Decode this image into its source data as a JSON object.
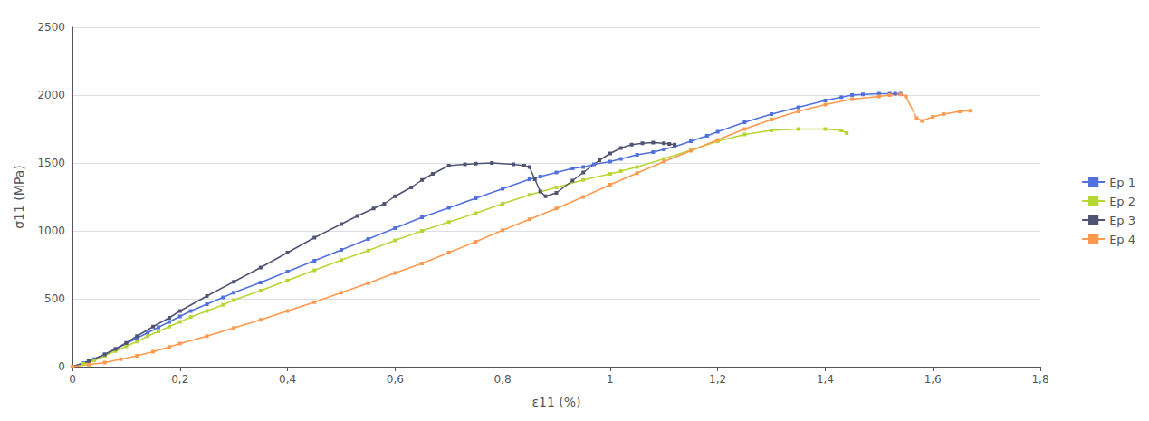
{
  "chart_data": {
    "type": "line",
    "xlabel": "ε11 (%)",
    "ylabel": "σ11 (MPa)",
    "xlim": [
      0,
      1.8
    ],
    "ylim": [
      0,
      2500
    ],
    "xticks": [
      0,
      {
        "value": 0.2,
        "label": "0,2"
      },
      {
        "value": 0.4,
        "label": "0,4"
      },
      {
        "value": 0.6,
        "label": "0,6"
      },
      {
        "value": 0.8,
        "label": "0,8"
      },
      1,
      {
        "value": 1.2,
        "label": "1,2"
      },
      {
        "value": 1.4,
        "label": "1,4"
      },
      {
        "value": 1.6,
        "label": "1,6"
      },
      {
        "value": 1.8,
        "label": "1,8"
      }
    ],
    "yticks": [
      0,
      500,
      1000,
      1500,
      2000,
      2500
    ],
    "grid": "y",
    "legend": "right",
    "marker": "square",
    "series": [
      {
        "name": "Ep 1",
        "x": [
          0,
          0.02,
          0.04,
          0.06,
          0.08,
          0.1,
          0.12,
          0.14,
          0.16,
          0.18,
          0.2,
          0.22,
          0.25,
          0.28,
          0.3,
          0.35,
          0.4,
          0.45,
          0.5,
          0.55,
          0.6,
          0.65,
          0.7,
          0.75,
          0.8,
          0.85,
          0.87,
          0.9,
          0.93,
          0.95,
          0.97,
          1.0,
          1.02,
          1.05,
          1.08,
          1.1,
          1.12,
          1.15,
          1.18,
          1.2,
          1.25,
          1.3,
          1.35,
          1.4,
          1.43,
          1.45,
          1.47,
          1.5,
          1.52,
          1.53,
          1.54
        ],
        "values": [
          0,
          25,
          55,
          90,
          130,
          170,
          210,
          250,
          290,
          330,
          370,
          410,
          460,
          510,
          545,
          620,
          700,
          780,
          860,
          940,
          1020,
          1100,
          1170,
          1240,
          1310,
          1380,
          1400,
          1430,
          1460,
          1470,
          1490,
          1510,
          1530,
          1560,
          1580,
          1600,
          1620,
          1660,
          1700,
          1730,
          1800,
          1860,
          1910,
          1960,
          1985,
          2000,
          2005,
          2010,
          2010,
          2010,
          2010
        ]
      },
      {
        "name": "Ep 2",
        "x": [
          0,
          0.02,
          0.04,
          0.06,
          0.08,
          0.1,
          0.12,
          0.14,
          0.16,
          0.18,
          0.2,
          0.22,
          0.25,
          0.28,
          0.3,
          0.35,
          0.4,
          0.45,
          0.5,
          0.55,
          0.6,
          0.65,
          0.7,
          0.75,
          0.8,
          0.85,
          0.9,
          0.95,
          1.0,
          1.02,
          1.05,
          1.1,
          1.15,
          1.2,
          1.25,
          1.3,
          1.35,
          1.4,
          1.43,
          1.44
        ],
        "values": [
          0,
          20,
          45,
          80,
          115,
          150,
          185,
          225,
          260,
          295,
          330,
          365,
          410,
          455,
          490,
          560,
          635,
          710,
          785,
          855,
          930,
          1000,
          1065,
          1130,
          1200,
          1265,
          1320,
          1375,
          1420,
          1440,
          1470,
          1530,
          1595,
          1660,
          1710,
          1740,
          1750,
          1750,
          1740,
          1720
        ]
      },
      {
        "name": "Ep 3",
        "x": [
          0,
          0.03,
          0.06,
          0.08,
          0.1,
          0.12,
          0.15,
          0.18,
          0.2,
          0.25,
          0.3,
          0.35,
          0.4,
          0.45,
          0.5,
          0.53,
          0.56,
          0.58,
          0.6,
          0.63,
          0.65,
          0.67,
          0.7,
          0.73,
          0.75,
          0.78,
          0.82,
          0.84,
          0.85,
          0.86,
          0.87,
          0.88,
          0.9,
          0.93,
          0.95,
          0.98,
          1.0,
          1.02,
          1.04,
          1.06,
          1.08,
          1.1,
          1.11,
          1.12
        ],
        "values": [
          0,
          40,
          90,
          130,
          175,
          225,
          295,
          360,
          410,
          520,
          625,
          730,
          840,
          950,
          1050,
          1110,
          1165,
          1200,
          1255,
          1320,
          1375,
          1420,
          1480,
          1490,
          1495,
          1500,
          1490,
          1480,
          1470,
          1380,
          1290,
          1255,
          1280,
          1370,
          1430,
          1520,
          1570,
          1610,
          1635,
          1645,
          1650,
          1645,
          1640,
          1635
        ]
      },
      {
        "name": "Ep 4",
        "x": [
          0,
          0.03,
          0.06,
          0.09,
          0.12,
          0.15,
          0.18,
          0.2,
          0.25,
          0.3,
          0.35,
          0.4,
          0.45,
          0.5,
          0.55,
          0.6,
          0.65,
          0.7,
          0.75,
          0.8,
          0.85,
          0.9,
          0.95,
          1.0,
          1.05,
          1.1,
          1.15,
          1.2,
          1.25,
          1.3,
          1.35,
          1.4,
          1.45,
          1.5,
          1.52,
          1.54,
          1.55,
          1.57,
          1.58,
          1.6,
          1.62,
          1.65,
          1.67
        ],
        "values": [
          0,
          15,
          30,
          55,
          80,
          110,
          145,
          170,
          225,
          285,
          345,
          410,
          475,
          545,
          615,
          690,
          760,
          840,
          920,
          1005,
          1085,
          1165,
          1250,
          1340,
          1425,
          1510,
          1590,
          1670,
          1750,
          1820,
          1880,
          1930,
          1970,
          1990,
          2000,
          2005,
          1990,
          1830,
          1810,
          1840,
          1860,
          1880,
          1885
        ]
      }
    ]
  }
}
